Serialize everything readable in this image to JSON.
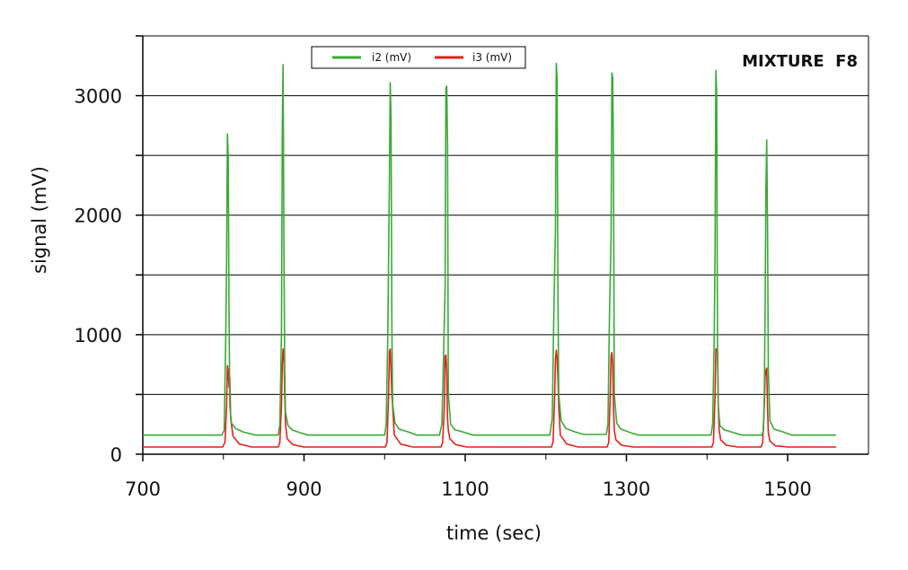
{
  "chart_data": {
    "type": "line",
    "title": "MIXTURE  F8",
    "xlabel": "time (sec)",
    "ylabel": "signal (mV)",
    "xlim": [
      700,
      1600
    ],
    "ylim": [
      0,
      3500
    ],
    "x_ticks": [
      700,
      900,
      1100,
      1300,
      1500
    ],
    "y_ticks": [
      0,
      1000,
      2000,
      3000
    ],
    "y_gridlines": [
      500,
      1000,
      1500,
      2000,
      2500,
      3000
    ],
    "grid": "horizontal",
    "legend_position": "top-center",
    "series": [
      {
        "name": "i2 (mV)",
        "color": "#3aaa35",
        "x": [
          700,
          798,
          801,
          803,
          804,
          805,
          806,
          807,
          808,
          810,
          815,
          825,
          840,
          868,
          870,
          872,
          873,
          874,
          875,
          876,
          877,
          880,
          885,
          895,
          905,
          1000,
          1002,
          1004,
          1006,
          1007,
          1008,
          1009,
          1010,
          1013,
          1018,
          1030,
          1040,
          1068,
          1071,
          1073,
          1075,
          1076,
          1077,
          1078,
          1079,
          1082,
          1087,
          1100,
          1110,
          1205,
          1208,
          1210,
          1212,
          1213,
          1214,
          1215,
          1216,
          1219,
          1225,
          1237,
          1247,
          1275,
          1277,
          1279,
          1281,
          1282,
          1283,
          1284,
          1285,
          1288,
          1293,
          1305,
          1315,
          1405,
          1407,
          1409,
          1410,
          1411,
          1412,
          1413,
          1414,
          1416,
          1421,
          1433,
          1443,
          1468,
          1470,
          1471,
          1472,
          1473,
          1474,
          1475,
          1476,
          1478,
          1483,
          1495,
          1505,
          1560
        ],
        "values": [
          160,
          160,
          200,
          1000,
          1600,
          2680,
          2500,
          1200,
          400,
          260,
          215,
          185,
          160,
          160,
          250,
          1000,
          2700,
          3260,
          1800,
          700,
          350,
          240,
          205,
          180,
          160,
          160,
          250,
          1000,
          2300,
          3110,
          2800,
          1100,
          420,
          260,
          210,
          185,
          160,
          160,
          250,
          800,
          1400,
          3060,
          3080,
          2600,
          500,
          250,
          205,
          180,
          160,
          160,
          300,
          1200,
          1900,
          3270,
          3150,
          1400,
          500,
          280,
          215,
          185,
          165,
          165,
          250,
          1200,
          1800,
          3190,
          3150,
          2400,
          500,
          260,
          210,
          180,
          160,
          160,
          250,
          1000,
          1700,
          3210,
          3000,
          900,
          400,
          240,
          205,
          180,
          160,
          160,
          200,
          500,
          1200,
          2200,
          2630,
          1900,
          700,
          280,
          210,
          185,
          160,
          160
        ]
      },
      {
        "name": "i3 (mV)",
        "color": "#e3211c",
        "x": [
          700,
          799,
          802,
          804,
          805,
          806,
          807,
          808,
          809,
          812,
          820,
          835,
          868,
          870,
          872,
          873,
          874,
          875,
          876,
          877,
          879,
          886,
          900,
          1001,
          1003,
          1005,
          1006,
          1007,
          1008,
          1009,
          1010,
          1012,
          1020,
          1035,
          1070,
          1072,
          1074,
          1075,
          1076,
          1077,
          1078,
          1079,
          1081,
          1088,
          1102,
          1207,
          1209,
          1211,
          1212,
          1213,
          1214,
          1215,
          1216,
          1218,
          1226,
          1240,
          1276,
          1278,
          1280,
          1281,
          1282,
          1283,
          1284,
          1285,
          1287,
          1294,
          1308,
          1406,
          1408,
          1410,
          1411,
          1412,
          1413,
          1414,
          1415,
          1417,
          1424,
          1438,
          1467,
          1469,
          1471,
          1472,
          1473,
          1474,
          1475,
          1476,
          1478,
          1485,
          1500,
          1560
        ],
        "values": [
          60,
          60,
          100,
          400,
          740,
          700,
          560,
          640,
          300,
          150,
          85,
          60,
          60,
          100,
          400,
          750,
          880,
          850,
          500,
          250,
          130,
          80,
          60,
          60,
          100,
          500,
          860,
          880,
          700,
          500,
          400,
          160,
          85,
          60,
          60,
          100,
          400,
          820,
          830,
          700,
          300,
          200,
          130,
          80,
          60,
          60,
          100,
          500,
          800,
          870,
          800,
          650,
          400,
          160,
          85,
          60,
          60,
          100,
          500,
          820,
          850,
          750,
          400,
          200,
          120,
          75,
          60,
          60,
          100,
          500,
          880,
          880,
          850,
          400,
          200,
          120,
          75,
          60,
          60,
          100,
          400,
          650,
          700,
          720,
          400,
          180,
          110,
          70,
          60,
          60
        ]
      }
    ]
  }
}
